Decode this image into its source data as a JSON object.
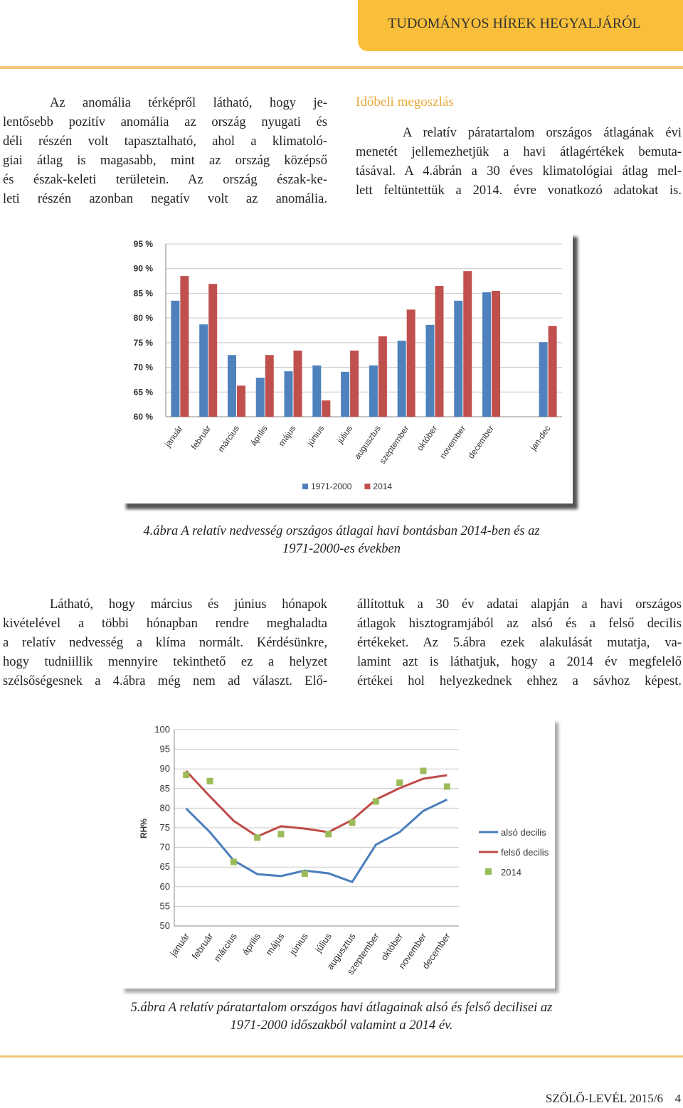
{
  "header": {
    "title": "TUDOMÁNYOS HÍREK HEGYALJÁRÓL"
  },
  "intro": {
    "lines": [
      "Az anomália térképről látható, hogy je-",
      "lentősebb pozitív anomália az ország nyugati és",
      "déli részén volt tapasztalható, ahol a klimatoló-",
      "giai átlag is magasabb, mint az ország középső",
      "és észak-keleti területein. Az ország észak-ke-",
      "leti részén azonban negatív volt az anomália."
    ]
  },
  "section": {
    "heading": "Időbeli megoszlás",
    "lines": [
      "A relatív páratartalom országos átlagának évi",
      "menetét jellemezhetjük a havi átlagértékek bemuta-",
      "tásával. A 4.ábrán a 30 éves klimatológiai átlag mel-",
      "lett feltüntettük a 2014. évre vonatkozó adatokat is."
    ]
  },
  "chart_data": [
    {
      "type": "bar",
      "categories": [
        "január",
        "február",
        "március",
        "április",
        "május",
        "június",
        "július",
        "augusztus",
        "szeptember",
        "október",
        "november",
        "december",
        null,
        "jan-dec"
      ],
      "series": [
        {
          "name": "1971-2000",
          "color": "#4f81bd",
          "values": [
            83.5,
            78.7,
            72.5,
            67.9,
            69.2,
            70.4,
            69.1,
            70.4,
            75.4,
            78.6,
            83.5,
            85.2,
            null,
            75.1
          ]
        },
        {
          "name": "2014",
          "color": "#c0504d",
          "values": [
            88.5,
            86.9,
            66.3,
            72.5,
            73.4,
            63.3,
            73.4,
            76.3,
            81.7,
            86.5,
            89.5,
            85.5,
            null,
            78.4
          ]
        }
      ],
      "ylim": [
        60,
        95
      ],
      "yticks": [
        {
          "value": 60,
          "label": "60 %"
        },
        {
          "value": 65,
          "label": "65 %"
        },
        {
          "value": 70,
          "label": "70 %"
        },
        {
          "value": 75,
          "label": "75 %"
        },
        {
          "value": 80,
          "label": "80 %"
        },
        {
          "value": 85,
          "label": "85 %"
        },
        {
          "value": 90,
          "label": "90 %"
        },
        {
          "value": 95,
          "label": "95 %"
        }
      ],
      "grid": true,
      "legend": "bottom"
    },
    {
      "type": "line",
      "y_label": "RH%",
      "categories": [
        "január",
        "február",
        "március",
        "április",
        "május",
        "június",
        "július",
        "augusztus",
        "szeptember",
        "október",
        "november",
        "december"
      ],
      "series": [
        {
          "name": "alsó decilis",
          "color": "#4a7ebb",
          "values": [
            79.9,
            73.9,
            66.7,
            63.2,
            62.7,
            64.1,
            63.4,
            61.2,
            70.7,
            73.9,
            79.3,
            82.2
          ]
        },
        {
          "name": "felső decilis",
          "color": "#be4b48",
          "values": [
            89.5,
            83.0,
            76.8,
            72.8,
            75.4,
            74.8,
            73.9,
            77.0,
            82.2,
            85.1,
            87.5,
            88.4
          ]
        },
        {
          "name": "2014",
          "color": "#9bbb59",
          "type": "scatter",
          "values": [
            88.5,
            86.9,
            66.3,
            72.5,
            73.4,
            63.3,
            73.4,
            76.3,
            81.7,
            86.5,
            89.5,
            85.5
          ]
        }
      ],
      "ylim": [
        50,
        100
      ],
      "yticks": [
        50,
        55,
        60,
        65,
        70,
        75,
        80,
        85,
        90,
        95,
        100
      ],
      "grid": true,
      "legend": "right"
    }
  ],
  "captions": [
    [
      "4.ábra A relatív nedvesség országos átlagai havi bontásban 2014-ben és az",
      "1971-2000-es években"
    ],
    [
      "5.ábra A relatív páratartalom országos havi átlagainak alsó és felső decilisei az",
      "1971-2000 időszakból valamint a 2014 év."
    ]
  ],
  "body": {
    "left": [
      "Látható, hogy március és június hónapok",
      "kivételével a többi hónapban rendre meghaladta",
      "a relatív nedvesség a klíma normált. Kérdésünkre,",
      "hogy tudniillik mennyire tekinthető ez a helyzet",
      "szélsőségesnek a 4.ábra még nem ad választ. Elő-"
    ],
    "right": [
      "állítottuk a 30 év adatai alapján a havi országos",
      "átlagok hisztogramjából az alsó és a felső decilis",
      "értékeket. Az 5.ábra ezek alakulását mutatja, va-",
      "lamint azt is láthatjuk, hogy a 2014 év megfelelő",
      "értékei hol helyezkednek ehhez a sávhoz képest."
    ]
  },
  "footer": {
    "publication": "SZŐLŐ-LEVÉL 2015/6",
    "page": "4"
  }
}
